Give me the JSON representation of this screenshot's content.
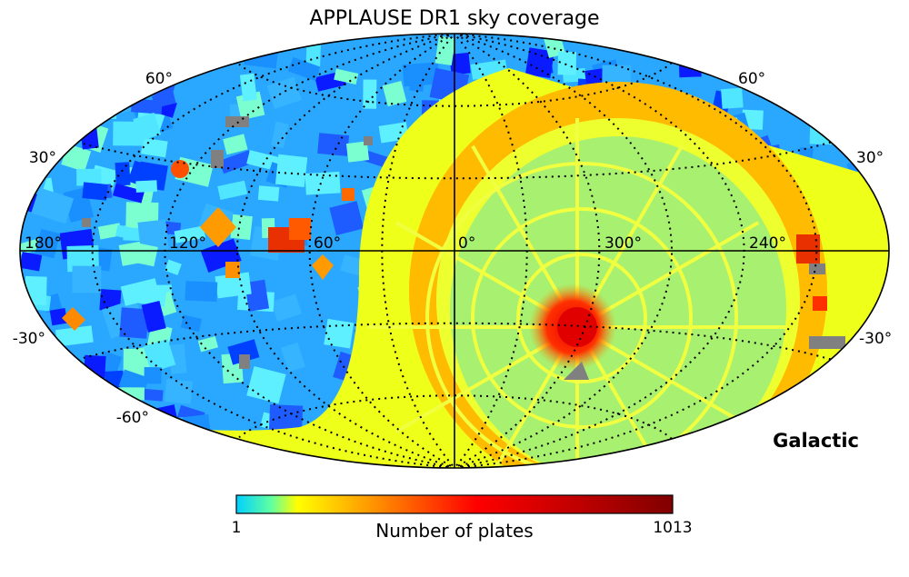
{
  "chart_data": {
    "type": "heatmap",
    "title": "APPLAUSE DR1 sky coverage",
    "projection": "Aitoff",
    "coordinate_frame": "Galactic",
    "grid": true,
    "longitude_ticks": [
      "180°",
      "120°",
      "60°",
      "0°",
      "300°",
      "240°"
    ],
    "latitude_ticks_left": [
      "60°",
      "30°",
      "-30°",
      "-60°"
    ],
    "latitude_ticks_right": [
      "60°",
      "30°",
      "-30°"
    ],
    "colorbar": {
      "label": "Number of plates",
      "min_label": "1",
      "max_label": "1013",
      "range": [
        1,
        1013
      ],
      "colormap": "jet"
    }
  },
  "colors": {
    "no_coverage_gray": "#808080",
    "axis_line": "#000000"
  }
}
